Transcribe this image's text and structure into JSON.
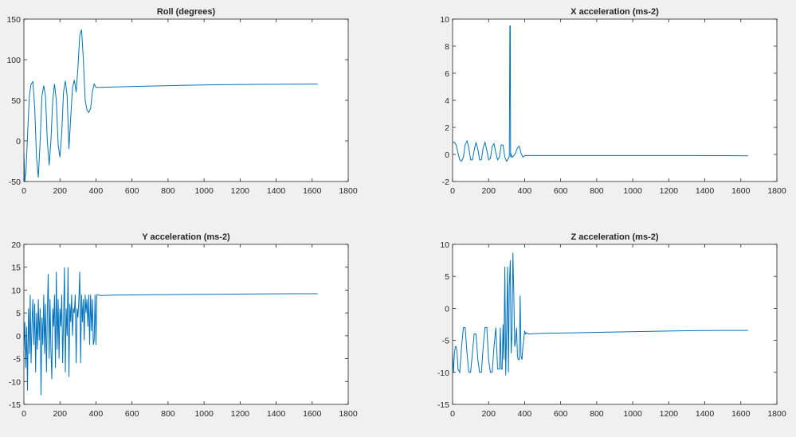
{
  "figure": {
    "background": "#f0f0f0",
    "line_color": "#0072bd",
    "axes_bg": "#ffffff"
  },
  "chart_data": [
    {
      "type": "line",
      "title": "Roll (degrees)",
      "xlabel": "",
      "ylabel": "",
      "xlim": [
        0,
        1800
      ],
      "ylim": [
        -50,
        150
      ],
      "xticks": [
        0,
        200,
        400,
        600,
        800,
        1000,
        1200,
        1400,
        1600,
        1800
      ],
      "yticks": [
        -50,
        0,
        50,
        100,
        150
      ],
      "grid": false,
      "series": [
        {
          "color": "#0072bd",
          "x": [
            0,
            5,
            12,
            20,
            30,
            40,
            50,
            60,
            70,
            80,
            90,
            100,
            110,
            120,
            130,
            140,
            150,
            160,
            170,
            180,
            190,
            200,
            210,
            220,
            230,
            240,
            250,
            260,
            270,
            280,
            290,
            300,
            310,
            320,
            330,
            340,
            350,
            360,
            370,
            380,
            390,
            400,
            410,
            420,
            430,
            500,
            700,
            900,
            1100,
            1300,
            1500,
            1630
          ],
          "y": [
            -15,
            -50,
            -35,
            5,
            55,
            70,
            73,
            40,
            -20,
            -45,
            0,
            55,
            68,
            55,
            0,
            -30,
            0,
            50,
            70,
            50,
            -5,
            -20,
            10,
            60,
            74,
            55,
            -10,
            30,
            65,
            75,
            60,
            90,
            130,
            137,
            100,
            50,
            38,
            35,
            40,
            60,
            70,
            66,
            66,
            66,
            66,
            66.5,
            67.5,
            68.5,
            69.2,
            69.6,
            69.8,
            70
          ]
        }
      ]
    },
    {
      "type": "line",
      "title": "X acceleration (ms-2)",
      "xlabel": "",
      "ylabel": "",
      "xlim": [
        0,
        1800
      ],
      "ylim": [
        -2,
        10
      ],
      "xticks": [
        0,
        200,
        400,
        600,
        800,
        1000,
        1200,
        1400,
        1600,
        1800
      ],
      "yticks": [
        -2,
        0,
        2,
        4,
        6,
        8,
        10
      ],
      "grid": false,
      "series": [
        {
          "color": "#0072bd",
          "x": [
            0,
            10,
            20,
            30,
            40,
            50,
            60,
            70,
            80,
            90,
            100,
            110,
            120,
            130,
            140,
            150,
            160,
            170,
            180,
            190,
            200,
            210,
            220,
            230,
            240,
            250,
            260,
            270,
            280,
            290,
            300,
            310,
            315,
            318,
            320,
            322,
            325,
            330,
            340,
            350,
            360,
            370,
            380,
            390,
            400,
            410,
            500,
            700,
            900,
            1100,
            1300,
            1500,
            1640
          ],
          "y": [
            0.9,
            0.9,
            0.7,
            0.1,
            -0.4,
            -0.5,
            -0.2,
            0.7,
            1.0,
            0.5,
            -0.4,
            -0.4,
            0.3,
            0.9,
            0.4,
            -0.4,
            -0.4,
            0.5,
            0.9,
            0.3,
            -0.4,
            -0.3,
            0.6,
            0.8,
            0.1,
            -0.4,
            -0.2,
            0.7,
            0.7,
            -0.2,
            -0.5,
            -0.3,
            -0.1,
            9.5,
            9.5,
            -0.2,
            0.0,
            -0.2,
            -0.1,
            0.1,
            0.5,
            0.6,
            0.1,
            -0.2,
            -0.1,
            -0.08,
            -0.08,
            -0.08,
            -0.08,
            -0.08,
            -0.08,
            -0.09,
            -0.1
          ]
        }
      ]
    },
    {
      "type": "line",
      "title": "Y acceleration (ms-2)",
      "xlabel": "",
      "ylabel": "",
      "xlim": [
        0,
        1800
      ],
      "ylim": [
        -15,
        20
      ],
      "xticks": [
        0,
        200,
        400,
        600,
        800,
        1000,
        1200,
        1400,
        1600,
        1800
      ],
      "yticks": [
        -15,
        -10,
        -5,
        0,
        5,
        10,
        15,
        20
      ],
      "grid": false,
      "series": [
        {
          "color": "#0072bd",
          "x": [
            0,
            5,
            10,
            15,
            20,
            25,
            30,
            35,
            40,
            45,
            50,
            55,
            60,
            65,
            70,
            75,
            80,
            85,
            90,
            95,
            100,
            105,
            110,
            115,
            120,
            125,
            130,
            135,
            140,
            145,
            150,
            155,
            160,
            165,
            170,
            175,
            180,
            185,
            190,
            195,
            200,
            205,
            210,
            215,
            220,
            225,
            230,
            235,
            240,
            245,
            250,
            255,
            260,
            265,
            270,
            275,
            280,
            285,
            290,
            295,
            300,
            305,
            310,
            315,
            320,
            325,
            330,
            335,
            340,
            345,
            350,
            355,
            360,
            365,
            370,
            375,
            380,
            385,
            390,
            395,
            400,
            405,
            410,
            420,
            500,
            700,
            900,
            1100,
            1300,
            1500,
            1630
          ],
          "y": [
            -3,
            3,
            -7,
            2,
            -12,
            6,
            -4,
            9,
            -6,
            3,
            8,
            -2,
            7,
            -8,
            5,
            -3,
            8,
            -1,
            6,
            -13,
            4,
            -2,
            9,
            -4,
            7,
            -8,
            5,
            13.5,
            -5,
            8,
            -3,
            -9.5,
            6,
            2,
            9,
            -7,
            14,
            -3,
            8,
            -5,
            6,
            2,
            9,
            -6,
            3,
            15,
            -8,
            6,
            0,
            15,
            -9,
            7,
            3,
            9,
            0,
            6,
            5,
            9,
            -6,
            6,
            4,
            8,
            14,
            -6,
            9,
            3,
            8,
            -1,
            9,
            5,
            8,
            2,
            9,
            -2,
            9,
            1,
            8,
            -2,
            -1,
            9,
            -2,
            9,
            9,
            8.8,
            8.9,
            9.0,
            9.05,
            9.1,
            9.15,
            9.2,
            9.2
          ]
        }
      ]
    },
    {
      "type": "line",
      "title": "Z acceleration (ms-2)",
      "xlabel": "",
      "ylabel": "",
      "xlim": [
        0,
        1800
      ],
      "ylim": [
        -15,
        10
      ],
      "xticks": [
        0,
        200,
        400,
        600,
        800,
        1000,
        1200,
        1400,
        1600,
        1800
      ],
      "yticks": [
        -15,
        -10,
        -5,
        0,
        5,
        10
      ],
      "grid": false,
      "series": [
        {
          "color": "#0072bd",
          "x": [
            0,
            5,
            10,
            15,
            20,
            25,
            30,
            40,
            50,
            60,
            70,
            80,
            90,
            100,
            110,
            120,
            130,
            140,
            150,
            160,
            170,
            180,
            190,
            200,
            210,
            220,
            230,
            240,
            250,
            260,
            265,
            270,
            275,
            280,
            285,
            290,
            295,
            300,
            305,
            310,
            315,
            320,
            325,
            330,
            335,
            340,
            345,
            350,
            355,
            360,
            365,
            370,
            375,
            380,
            385,
            390,
            395,
            400,
            405,
            410,
            420,
            500,
            700,
            900,
            1100,
            1300,
            1500,
            1640
          ],
          "y": [
            -7,
            -10,
            -7,
            -6,
            -6,
            -7,
            -9.5,
            -10,
            -6,
            -3,
            -3,
            -7,
            -10,
            -10,
            -7,
            -4,
            -4,
            -8,
            -10,
            -10,
            -6,
            -3,
            -3,
            -8,
            -10,
            -10,
            -6,
            -3,
            -9.5,
            -9.5,
            -3,
            -9.5,
            -9.5,
            -2.5,
            -8,
            6.5,
            -10.5,
            -3.5,
            6.5,
            -10,
            3.5,
            7.5,
            -7,
            -4,
            8.7,
            2,
            -6,
            -5,
            -3,
            -7.5,
            -8,
            -8,
            2,
            -7.5,
            -8,
            -6,
            -5,
            -3.5,
            -4,
            -3.8,
            -4,
            -3.9,
            -3.8,
            -3.7,
            -3.6,
            -3.5,
            -3.45,
            -3.45
          ]
        }
      ]
    }
  ]
}
